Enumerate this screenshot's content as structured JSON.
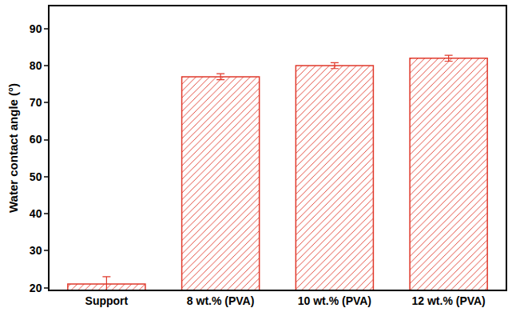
{
  "chart_data": {
    "type": "bar",
    "y_label": "Water contact angle (°)",
    "categories": [
      "Support",
      "8 wt.% (PVA)",
      "10 wt.% (PVA)",
      "12 wt.% (PVA)"
    ],
    "values": [
      21,
      77,
      80,
      82
    ],
    "errors": [
      2,
      0.8,
      0.8,
      0.8
    ],
    "color": "#e0392b",
    "ylim": [
      19.5,
      96
    ],
    "yticks": [
      20,
      30,
      40,
      50,
      60,
      70,
      80,
      90
    ],
    "grid": false
  }
}
